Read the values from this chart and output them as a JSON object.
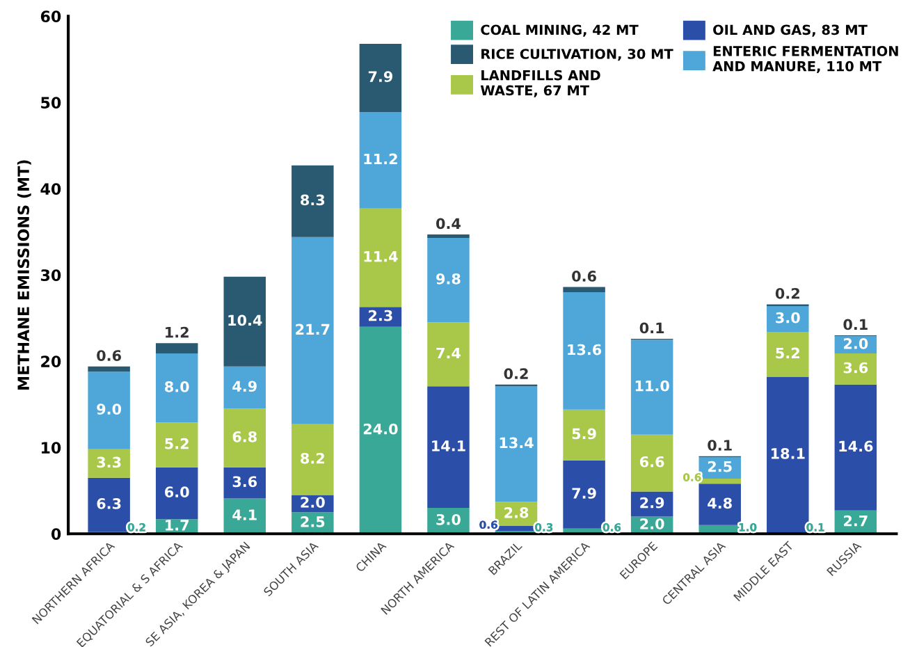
{
  "chart_data": {
    "type": "bar",
    "stacked": true,
    "ylabel": "METHANE EMISSIONS (MT)",
    "categories": [
      "NORTHERN AFRICA",
      "EQUATORIAL & S AFRICA",
      "SE ASIA, KOREA & JAPAN",
      "SOUTH ASIA",
      "CHINA",
      "NORTH AMERICA",
      "BRAZIL",
      "REST OF LATIN AMERICA",
      "EUROPE",
      "CENTRAL ASIA",
      "MIDDLE EAST",
      "RUSSIA"
    ],
    "series": [
      {
        "name": "COAL MINING, 42 MT",
        "color": "#3aa896",
        "values": [
          0.2,
          1.7,
          4.1,
          2.5,
          24.0,
          3.0,
          0.3,
          0.6,
          2.0,
          1.0,
          0.1,
          2.7
        ],
        "value_labels": [
          "0.2",
          "1.7",
          "4.1",
          "2.5",
          "24.0",
          "3.0",
          "0.3",
          "0.6",
          "2.0",
          "1.0",
          "0.1",
          "2.7"
        ]
      },
      {
        "name": "OIL AND GAS, 83 MT",
        "color": "#2b4fa8",
        "values": [
          6.3,
          6.0,
          3.6,
          2.0,
          2.3,
          14.1,
          0.6,
          7.9,
          2.9,
          4.8,
          18.1,
          14.6
        ],
        "value_labels": [
          "6.3",
          "6.0",
          "3.6",
          "2.0",
          "2.3",
          "14.1",
          "0.6",
          "7.9",
          "2.9",
          "4.8",
          "18.1",
          "14.6"
        ]
      },
      {
        "name": "LANDFILLS AND\nWASTE, 67 MT",
        "color": "#a9c84a",
        "values": [
          3.3,
          5.2,
          6.8,
          8.2,
          11.4,
          7.4,
          2.8,
          5.9,
          6.6,
          0.6,
          5.2,
          3.6
        ],
        "value_labels": [
          "3.3",
          "5.2",
          "6.8",
          "8.2",
          "11.4",
          "7.4",
          "2.8",
          "5.9",
          "6.6",
          "0.6",
          "5.2",
          "3.6"
        ]
      },
      {
        "name": "ENTERIC FERMENTATION\nAND MANURE, 110 MT",
        "color": "#4fa7d9",
        "values": [
          9.0,
          8.0,
          4.9,
          21.7,
          11.2,
          9.8,
          13.4,
          13.6,
          11.0,
          2.5,
          3.0,
          2.0
        ],
        "value_labels": [
          "9.0",
          "8.0",
          "4.9",
          "21.7",
          "11.2",
          "9.8",
          "13.4",
          "13.6",
          "11.0",
          "2.5",
          "3.0",
          "2.0"
        ]
      },
      {
        "name": "RICE CULTIVATION, 30 MT",
        "color": "#2a5a72",
        "values": [
          0.6,
          1.2,
          10.4,
          8.3,
          7.9,
          0.4,
          0.2,
          0.6,
          0.1,
          0.1,
          0.2,
          0.1
        ],
        "value_labels": [
          "0.6",
          "1.2",
          "10.4",
          "8.3",
          "7.9",
          "0.4",
          "0.2",
          "0.6",
          "0.1",
          "0.1",
          "0.2",
          "0.1"
        ]
      }
    ],
    "ylim": [
      0,
      60
    ],
    "yticks": [
      0,
      10,
      20,
      30,
      40,
      50,
      60
    ],
    "grid": false,
    "legend": "top right"
  }
}
